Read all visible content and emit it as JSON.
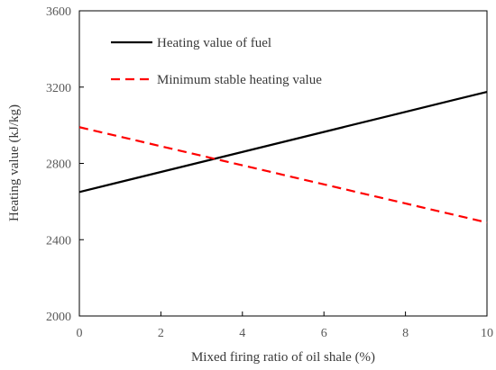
{
  "chart_data": {
    "type": "line",
    "xlabel": "Mixed firing ratio of oil shale (%)",
    "ylabel": "Heating value (kJ/kg)",
    "xlim": [
      0,
      10
    ],
    "ylim": [
      2000,
      3600
    ],
    "xticks": [
      0,
      2,
      4,
      6,
      8,
      10
    ],
    "yticks": [
      2000,
      2400,
      2800,
      3200,
      3600
    ],
    "grid": false,
    "legend_position": "top-left",
    "series": [
      {
        "name": "Heating value of fuel",
        "color": "#000000",
        "style": "solid",
        "x": [
          0,
          10
        ],
        "y": [
          2650,
          3175
        ]
      },
      {
        "name": "Minimum stable heating value",
        "color": "#ff0000",
        "style": "dashed",
        "x": [
          0,
          10
        ],
        "y": [
          2990,
          2490
        ]
      }
    ]
  }
}
